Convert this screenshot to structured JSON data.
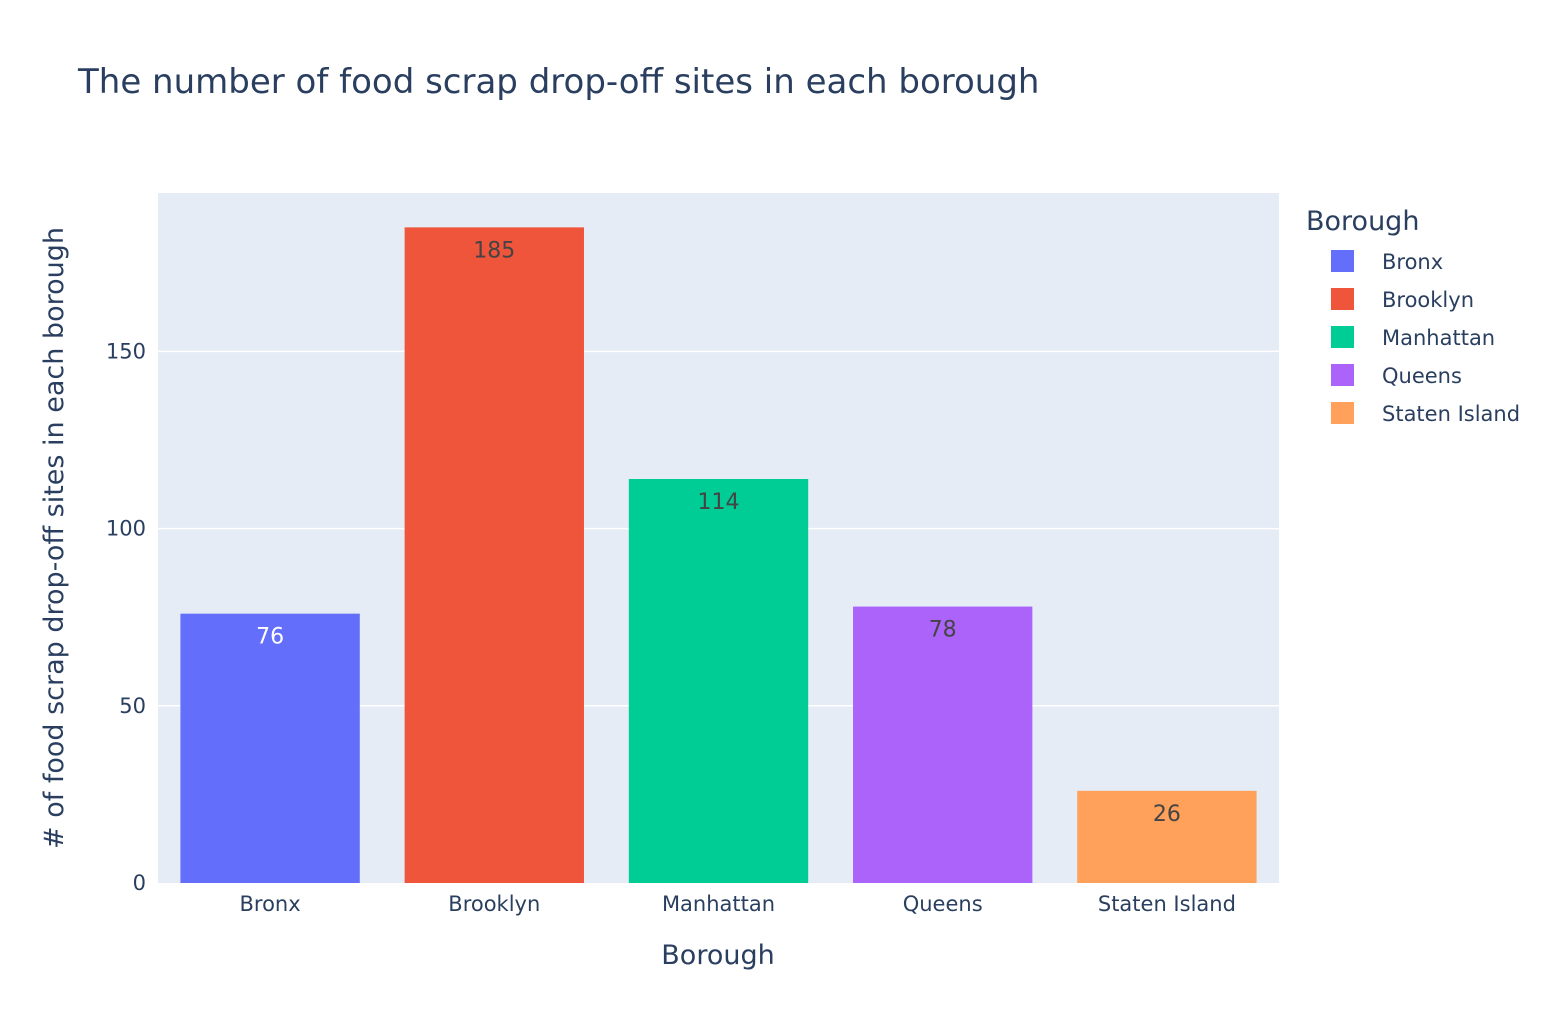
{
  "chart_data": {
    "type": "bar",
    "title": "The number of food scrap drop-off sites in each borough",
    "xlabel": "Borough",
    "ylabel": "# of food scrap drop-off sites in each borough",
    "categories": [
      "Bronx",
      "Brooklyn",
      "Manhattan",
      "Queens",
      "Staten Island"
    ],
    "series": [
      {
        "name": "Bronx",
        "category": "Bronx",
        "value": 76,
        "color": "#636efa",
        "label_color": "#ffffff"
      },
      {
        "name": "Brooklyn",
        "category": "Brooklyn",
        "value": 185,
        "color": "#ef553b",
        "label_color": "#444444"
      },
      {
        "name": "Manhattan",
        "category": "Manhattan",
        "value": 114,
        "color": "#00cc96",
        "label_color": "#444444"
      },
      {
        "name": "Queens",
        "category": "Queens",
        "value": 78,
        "color": "#ab63fa",
        "label_color": "#444444"
      },
      {
        "name": "Staten Island",
        "category": "Staten Island",
        "value": 26,
        "color": "#ffa15a",
        "label_color": "#444444"
      }
    ],
    "values": [
      76,
      185,
      114,
      78,
      26
    ],
    "data_labels": [
      "76",
      "185",
      "114",
      "78",
      "26"
    ],
    "ylim": [
      0,
      194.7
    ],
    "yticks": [
      0,
      50,
      100,
      150
    ],
    "ytick_labels": [
      "0",
      "50",
      "100",
      "150"
    ],
    "grid": true,
    "legend": {
      "title": "Borough",
      "placement": "right"
    },
    "colors": {
      "plot_bg": "#e5ecf6",
      "grid": "#ffffff",
      "text": "#2a3f5f"
    }
  }
}
